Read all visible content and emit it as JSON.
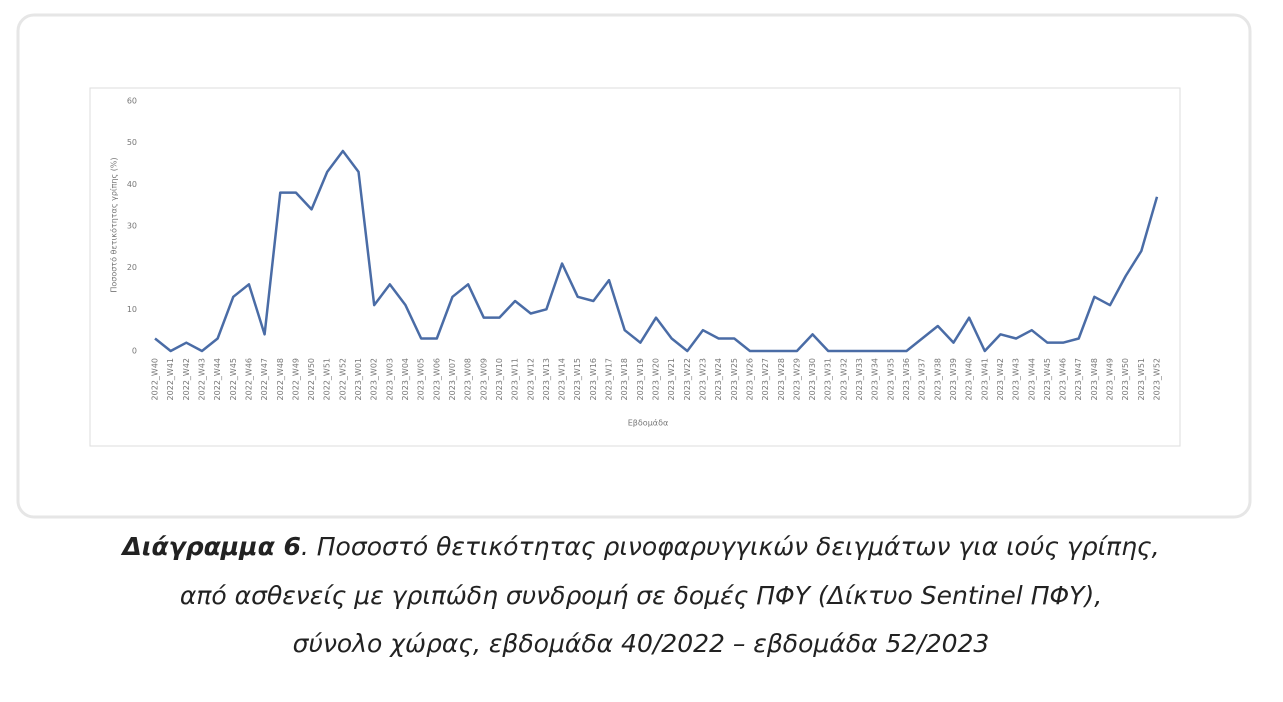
{
  "chart_data": {
    "type": "line",
    "y_label": "Ποσοστό θετικότητας γρίπης (%)",
    "x_label": "Εβδομάδα",
    "categories": [
      "2022_W40",
      "2022_W41",
      "2022_W42",
      "2022_W43",
      "2022_W44",
      "2022_W45",
      "2022_W46",
      "2022_W47",
      "2022_W48",
      "2022_W49",
      "2022_W50",
      "2022_W51",
      "2022_W52",
      "2023_W01",
      "2023_W02",
      "2023_W03",
      "2023_W04",
      "2023_W05",
      "2023_W06",
      "2023_W07",
      "2023_W08",
      "2023_W09",
      "2023_W10",
      "2023_W11",
      "2023_W12",
      "2023_W13",
      "2023_W14",
      "2023_W15",
      "2023_W16",
      "2023_W17",
      "2023_W18",
      "2023_W19",
      "2023_W20",
      "2023_W21",
      "2023_W22",
      "2023_W23",
      "2023_W24",
      "2023_W25",
      "2023_W26",
      "2023_W27",
      "2023_W28",
      "2023_W29",
      "2023_W30",
      "2023_W31",
      "2023_W32",
      "2023_W33",
      "2023_W34",
      "2023_W35",
      "2023_W36",
      "2023_W37",
      "2023_W38",
      "2023_W39",
      "2023_W40",
      "2023_W41",
      "2023_W42",
      "2023_W43",
      "2023_W44",
      "2023_W45",
      "2023_W46",
      "2023_W47",
      "2023_W48",
      "2023_W49",
      "2023_W50",
      "2023_W51",
      "2023_W52"
    ],
    "values": [
      3,
      0,
      2,
      0,
      3,
      13,
      16,
      4,
      38,
      38,
      34,
      43,
      48,
      43,
      11,
      16,
      11,
      3,
      3,
      13,
      16,
      8,
      8,
      12,
      9,
      10,
      21,
      13,
      12,
      17,
      5,
      2,
      8,
      3,
      0,
      5,
      3,
      3,
      0,
      0,
      0,
      0,
      4,
      0,
      0,
      0,
      0,
      0,
      0,
      3,
      6,
      2,
      8,
      0,
      4,
      3,
      5,
      2,
      2,
      3,
      13,
      11,
      18,
      24,
      37
    ],
    "color": "#4a6ca6",
    "ylim": [
      0,
      60
    ],
    "yticks": [
      0,
      10,
      20,
      30,
      40,
      50,
      60
    ],
    "grid": false
  },
  "caption": {
    "label": "Διάγραμμα 6",
    "lines": [
      ". Ποσοστό θετικότητας ρινοφαρυγγικών δειγμάτων για ιούς γρίπης,",
      "από ασθενείς με γριπώδη συνδρομή σε δομές ΠΦΥ (Δίκτυο Sentinel ΠΦΥ),",
      "σύνολο χώρας, εβδομάδα 40/2022 – εβδομάδα 52/2023"
    ]
  }
}
